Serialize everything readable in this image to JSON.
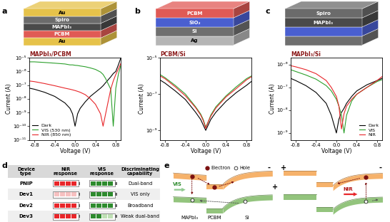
{
  "panel_labels": [
    "a",
    "b",
    "c",
    "d",
    "e"
  ],
  "schematics": [
    {
      "layers": [
        {
          "label": "Au",
          "color": "#e6c24a"
        },
        {
          "label": "Spiro",
          "color": "#6b6b6b"
        },
        {
          "label": "MAPbI₃",
          "color": "#4a4a4a"
        },
        {
          "label": "PCBM",
          "color": "#e05a55"
        },
        {
          "label": "Au",
          "color": "#e6c24a"
        }
      ]
    },
    {
      "layers": [
        {
          "label": "PCBM",
          "color": "#e05a55"
        },
        {
          "label": "SiO₂",
          "color": "#4a5fd0"
        },
        {
          "label": "Si",
          "color": "#6f6f6f"
        },
        {
          "label": "Ag",
          "color": "#b5b5b5"
        }
      ]
    },
    {
      "layers": [
        {
          "label": "Spiro",
          "color": "#6b6b6b"
        },
        {
          "label": "MAPbI₃",
          "color": "#4a4a4a"
        },
        {
          "label": null,
          "color": "#4a5fd0"
        },
        {
          "label": null,
          "color": "#6f6f6f"
        }
      ]
    }
  ],
  "chart_data": [
    {
      "type": "line",
      "title": "MAPbI₃/PCBM",
      "x_label": "Voltage (V)",
      "y_label": "Current (A)",
      "log": "y",
      "xlim": [
        -0.9,
        0.9
      ],
      "xticks": [
        -0.8,
        -0.4,
        0.0,
        0.4,
        0.8
      ],
      "ylim": [
        1e-11,
        1e-05
      ],
      "yticks": [
        {
          "value": 1e-11,
          "label": "10⁻¹¹"
        },
        {
          "value": 1e-10,
          "label": "10⁻¹⁰"
        },
        {
          "value": 1e-09,
          "label": "10⁻⁹"
        },
        {
          "value": 1e-08,
          "label": "10⁻⁸"
        },
        {
          "value": 1e-07,
          "label": "10⁻⁷"
        },
        {
          "value": 1e-06,
          "label": "10⁻⁶"
        },
        {
          "value": 1e-05,
          "label": "10⁻⁵"
        }
      ],
      "legend": "lower left",
      "x": [
        -0.9,
        -0.8,
        -0.6,
        -0.4,
        -0.2,
        -0.1,
        -0.05,
        0.0,
        0.05,
        0.1,
        0.2,
        0.3,
        0.4,
        0.5,
        0.55,
        0.6,
        0.7,
        0.75,
        0.8,
        0.85,
        0.9
      ],
      "series": [
        {
          "name": "Dark",
          "color": "#000000",
          "values": [
            6e-08,
            5e-08,
            3e-08,
            1.5e-08,
            5e-09,
            2e-09,
            8e-10,
            1e-10,
            8e-10,
            2e-09,
            6e-09,
            1.5e-08,
            3e-08,
            6e-08,
            9e-08,
            1.5e-07,
            4e-07,
            7e-07,
            1e-06,
            3e-06,
            1e-05
          ]
        },
        {
          "name": "VIS (530 nm)",
          "color": "#2ca02c",
          "values": [
            5e-06,
            5e-06,
            4.5e-06,
            4e-06,
            3.5e-06,
            3e-06,
            3e-06,
            2.8e-06,
            2.7e-06,
            2.5e-06,
            2.2e-06,
            1.8e-06,
            1.4e-06,
            9e-07,
            6e-07,
            3e-07,
            5e-08,
            1e-10,
            6e-08,
            6e-07,
            3e-06
          ]
        },
        {
          "name": "NIR (850 nm)",
          "color": "#e8262a",
          "values": [
            2e-07,
            1.8e-07,
            1.3e-07,
            9e-08,
            6e-08,
            5e-08,
            4.5e-08,
            4e-08,
            3.5e-08,
            3e-08,
            2e-08,
            1e-08,
            4e-09,
            8e-10,
            1e-10,
            8e-10,
            5e-08,
            2e-07,
            6e-07,
            1.5e-06,
            4e-06
          ]
        }
      ]
    },
    {
      "type": "line",
      "title": "PCBM/Si",
      "x_label": "Voltage (V)",
      "y_label": "Current (A)",
      "log": "y",
      "xlim": [
        -0.9,
        0.9
      ],
      "xticks": [
        -0.8,
        -0.4,
        0.0,
        0.4,
        0.8
      ],
      "ylim": [
        3e-10,
        1e-05
      ],
      "yticks": [
        {
          "value": 1e-09,
          "label": "10⁻⁹"
        },
        {
          "value": 1e-07,
          "label": "10⁻⁷"
        },
        {
          "value": 1e-05,
          "label": "10⁻⁵"
        }
      ],
      "x": [
        -0.9,
        -0.8,
        -0.6,
        -0.4,
        -0.2,
        -0.1,
        -0.05,
        0.0,
        0.05,
        0.1,
        0.2,
        0.4,
        0.6,
        0.8,
        0.9
      ],
      "series": [
        {
          "color": "#000000",
          "values": [
            6e-07,
            4e-07,
            1.5e-07,
            5e-08,
            1e-08,
            4e-09,
            2e-09,
            1e-09,
            2e-09,
            4e-09,
            1e-08,
            4e-08,
            1.2e-07,
            3e-07,
            5e-07
          ]
        },
        {
          "color": "#2ca02c",
          "values": [
            1.2e-06,
            8e-07,
            3e-07,
            1e-07,
            2e-08,
            8e-09,
            4e-09,
            1.5e-09,
            3e-09,
            7e-09,
            2e-08,
            8e-08,
            2.5e-07,
            7e-07,
            1e-06
          ]
        },
        {
          "color": "#e8262a",
          "values": [
            1e-06,
            7e-07,
            2.5e-07,
            8e-08,
            1.8e-08,
            7e-09,
            3.5e-09,
            1.3e-09,
            3e-09,
            6e-09,
            1.7e-08,
            7e-08,
            2e-07,
            6e-07,
            9e-07
          ]
        }
      ]
    },
    {
      "type": "line",
      "title": "MAPbI₃/Si",
      "x_label": "Voltage (V)",
      "y_label": "Current (A)",
      "log": "y",
      "xlim": [
        -0.9,
        0.9
      ],
      "xticks": [
        -0.8,
        -0.4,
        0.0,
        0.4,
        0.8
      ],
      "ylim": [
        5e-10,
        2e-06
      ],
      "yticks": [
        {
          "value": 1e-09,
          "label": "10⁻⁹"
        },
        {
          "value": 1e-08,
          "label": "10⁻⁸"
        },
        {
          "value": 1e-07,
          "label": "10⁻⁷"
        },
        {
          "value": 1e-06,
          "label": "10⁻⁶"
        }
      ],
      "legend": "lower right",
      "x": [
        -0.9,
        -0.8,
        -0.6,
        -0.4,
        -0.2,
        -0.1,
        0.0,
        0.05,
        0.1,
        0.15,
        0.2,
        0.3,
        0.4,
        0.6,
        0.8,
        0.9
      ],
      "series": [
        {
          "name": "Dark",
          "color": "#000000",
          "values": [
            2.5e-07,
            2e-07,
            1.2e-07,
            6e-08,
            2e-08,
            6e-09,
            1e-09,
            4e-09,
            8e-09,
            1.2e-08,
            2e-08,
            4e-08,
            7e-08,
            1.3e-07,
            2e-07,
            2.5e-07
          ]
        },
        {
          "name": "VIS",
          "color": "#2ca02c",
          "values": [
            6e-07,
            5e-07,
            3.5e-07,
            2.3e-07,
            1.2e-07,
            7e-08,
            3e-08,
            1.5e-08,
            6e-09,
            1e-09,
            6e-09,
            2.5e-08,
            5e-08,
            1e-07,
            1.8e-07,
            2.2e-07
          ]
        },
        {
          "name": "NIR",
          "color": "#e8262a",
          "values": [
            9e-07,
            8e-07,
            6e-07,
            4e-07,
            2e-07,
            1e-07,
            4e-08,
            1.5e-08,
            1.5e-09,
            7e-09,
            1.5e-08,
            3e-08,
            5e-08,
            1e-07,
            2e-07,
            3e-07
          ]
        }
      ]
    }
  ],
  "table": {
    "header": [
      "Device type",
      "NIR response",
      "VIS response",
      "Discriminating capability"
    ],
    "max_level": 4,
    "rows": [
      {
        "device": "PNIP",
        "nir_level": 4,
        "vis_level": 4,
        "capability": "Dual-band"
      },
      {
        "device": "Dev1",
        "nir_level": 0,
        "vis_level": 4,
        "capability": "VIS only"
      },
      {
        "device": "Dev2",
        "nir_level": 4,
        "vis_level": 4,
        "capability": "Broadband"
      },
      {
        "device": "Dev3",
        "nir_level": 4,
        "vis_level": 2,
        "capability": "Weak dual-band"
      }
    ]
  },
  "band_diagram": {
    "layers": [
      "MAPbI₃",
      "PCBM",
      "Si"
    ],
    "electron": "Electron",
    "hole": "Hole",
    "left": {
      "light": "VIS",
      "signs": [
        "-",
        "+"
      ]
    },
    "right": {
      "light": "NIR",
      "signs": [
        "+",
        "-"
      ]
    }
  }
}
